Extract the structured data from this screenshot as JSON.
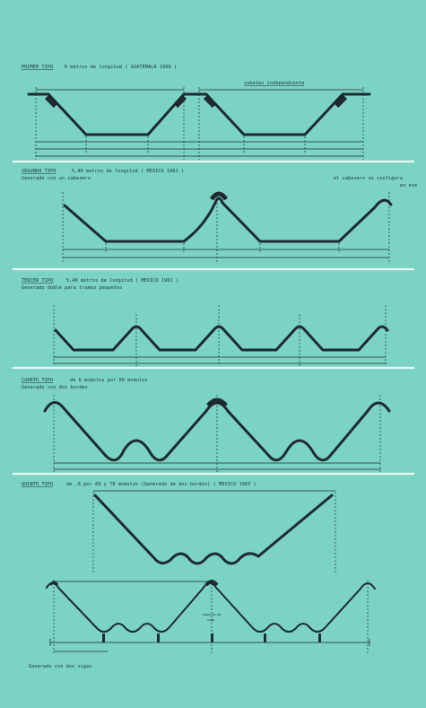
{
  "sections": [
    {
      "id": "primer",
      "title": "PRIMER  TIPO",
      "text": "6 metros de longitud  ( GUATEMALA  1960 )",
      "sub": "",
      "note": "cubetas independiente"
    },
    {
      "id": "segundo",
      "title": "SEGUNDO  TIPO",
      "text": "5,40  metros  de  longitud   ( MEXICO  1961 )",
      "sub": "Generado  con  un  cabezero",
      "note": "el cabezero se configura",
      "note2": "en ese"
    },
    {
      "id": "tercer",
      "title": "TERCER  TIPO",
      "text": "5,40  metros  de  longitud   ( MEXICO  1961 )",
      "sub": "Generado  doble  para  tramos  pequeños"
    },
    {
      "id": "cuarto",
      "title": "CUARTO  TIPO",
      "text": "de 6 modulos  por  60  modulos",
      "sub": "Generado  con  dos  bordes"
    },
    {
      "id": "quinto",
      "title": "QUINTO  TIPO",
      "text": "de .6 por 60  y  78  modulos   (Generado de dos bordes)   ( MEXICO  1963 )",
      "sub": ""
    }
  ],
  "bottom": {
    "center_label": "soporte de",
    "center_label2": "viga",
    "footer": "Generado  con  dos  vigas"
  }
}
